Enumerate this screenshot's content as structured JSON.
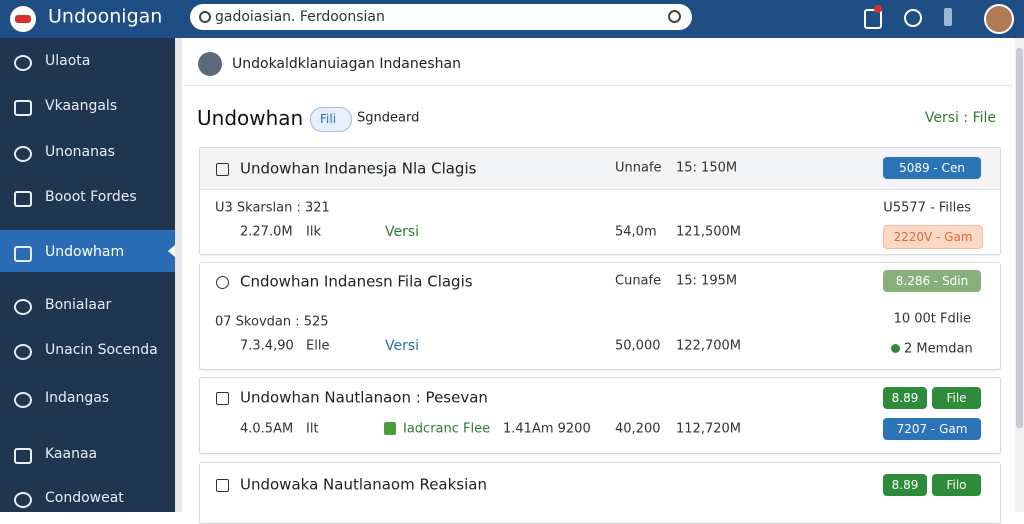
{
  "header": {
    "app_name": "Undoonigan",
    "search": "gadoiasian. Ferdoonsian"
  },
  "sidebar": {
    "items": [
      "Ulaota",
      "Vkaangals",
      "Unonanas",
      "Booot Fordes",
      "Undowham",
      "Bonialaar",
      "Unacin Socenda",
      "Indangas",
      "Kaanaa",
      "Condoweat"
    ]
  },
  "main": {
    "user_row": "Undokaldklanuiagan Indaneshan",
    "title": "Undowhan",
    "filter": "Fili",
    "sort": "Sgndeard",
    "version_link": "Versi : File",
    "cards": [
      {
        "title": "Undowhan Indanesja Nla Clagis",
        "status": "Unnafe",
        "size": "15: 150M",
        "badge": "5089 - Cen",
        "meta": "U3 Skarslan : 321",
        "meta_right": "U5577 - Filles",
        "row": [
          "2.27.0M",
          "Ilk",
          "Versi",
          "54,0m",
          "121,500M"
        ],
        "row_badge": "2220V - Gam"
      },
      {
        "title": "Cndowhan Indanesn Fila Clagis",
        "status": "Cunafe",
        "size": "15: 195M",
        "badge": "8.286 - Sdin",
        "meta": "07 Skovdan : 525",
        "meta_right": "10 00t Fdlie",
        "row": [
          "7.3.4,90",
          "Elle",
          "Versi",
          "50,000",
          "122,700M"
        ],
        "row_badge": "2 Memdan"
      },
      {
        "title": "Undowhan Nautlanaon : Pesevan",
        "badges": [
          "8.89",
          "File"
        ],
        "row": [
          "4.0.5AM",
          "Ilt",
          "Iadcranc Flee",
          "1.41Am 9200",
          "40,200",
          "112,720M"
        ],
        "row_badge": "7207 - Gam"
      },
      {
        "title": "Undowaka Nautlanaom Reaksian",
        "badges": [
          "8.89",
          "Filo"
        ]
      }
    ]
  }
}
